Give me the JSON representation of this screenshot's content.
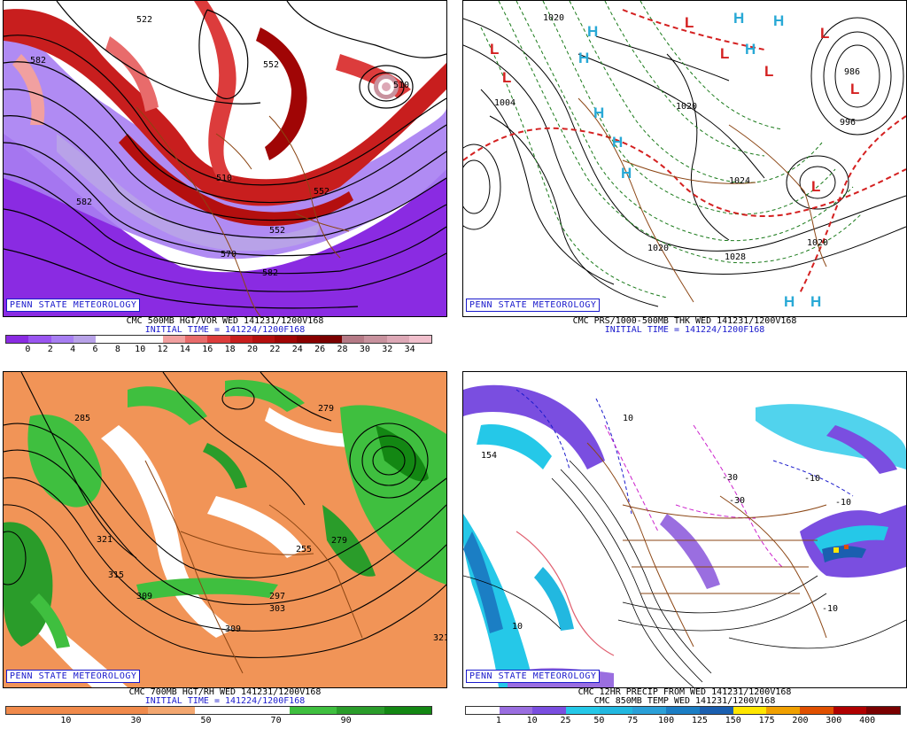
{
  "badge_text": "PENN STATE METEOROLOGY",
  "panels": [
    {
      "caption_line1": "CMC 500MB HGT/VOR WED 141231/1200V168",
      "caption_line2": "INITIAL TIME = 141224/1200F168",
      "scale_colors": [
        "#8a2be2",
        "#9a55f0",
        "#a77ef2",
        "#b8a2e8",
        "#ffffff",
        "#ffffff",
        "#ffffff",
        "#f1a0a0",
        "#e86b6b",
        "#dc3c3c",
        "#c81e1e",
        "#b40f0f",
        "#a00505",
        "#880000",
        "#7a0000",
        "#b57a86",
        "#c8929e",
        "#dda8b6",
        "#f0bfcc"
      ],
      "scale_labels": [
        "0",
        "2",
        "4",
        "6",
        "8",
        "10",
        "12",
        "14",
        "16",
        "18",
        "20",
        "22",
        "24",
        "26",
        "28",
        "30",
        "32",
        "34"
      ],
      "map_labels": [
        "522",
        "552",
        "582",
        "570",
        "552",
        "582",
        "510",
        "510",
        "552",
        "582"
      ]
    },
    {
      "caption_line1": "CMC PRS/1000-500MB THK WED 141231/1200V168",
      "caption_line2": "INITIAL TIME = 141224/1200F168",
      "map_labels": [
        "1004",
        "1020",
        "1020",
        "1024",
        "1020",
        "996",
        "1020",
        "1028",
        "986"
      ],
      "high_symbol": "H",
      "low_symbol": "L"
    },
    {
      "caption_line1": "CMC 700MB HGT/RH WED 141231/1200V168",
      "caption_line2": "INITIAL TIME = 141224/1200F168",
      "scale_colors": [
        "#f08a4b",
        "#f08a4b",
        "#f08a4b",
        "#f3a770",
        "#ffffff",
        "#ffffff",
        "#3fbf3f",
        "#2a9c2a",
        "#138713"
      ],
      "scale_labels": [
        "10",
        "30",
        "50",
        "70",
        "90"
      ],
      "map_labels": [
        "285",
        "279",
        "321",
        "315",
        "309",
        "309",
        "297",
        "303",
        "255",
        "279",
        "321"
      ]
    },
    {
      "caption_line1": "CMC 12HR PRECIP FROM WED 141231/1200V168",
      "caption_line2": "CMC 850MB TEMP WED 141231/1200V168",
      "scale_colors": [
        "#ffffff",
        "#9a6ee0",
        "#7a4ee0",
        "#25c8e8",
        "#22b8e0",
        "#2aa0d8",
        "#1b7ec4",
        "#1a5fb0",
        "#ffe600",
        "#f0a000",
        "#e05000",
        "#b00000",
        "#7a0000"
      ],
      "scale_labels": [
        "1",
        "10",
        "25",
        "50",
        "75",
        "100",
        "125",
        "150",
        "175",
        "200",
        "300",
        "400"
      ],
      "map_labels": [
        "154",
        "10",
        "-10",
        "-10",
        "-30",
        "-30",
        "10",
        "-10"
      ]
    }
  ]
}
